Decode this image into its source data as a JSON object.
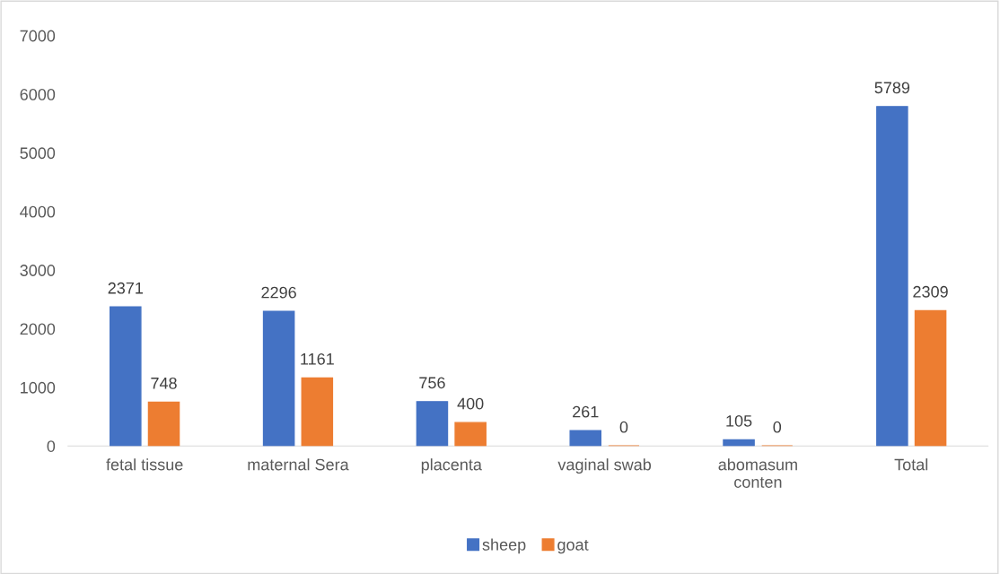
{
  "chart_data": {
    "type": "bar",
    "categories": [
      "fetal tissue",
      "maternal Sera",
      "placenta",
      "vaginal swab",
      "abomasum conten",
      "Total"
    ],
    "series": [
      {
        "name": "sheep",
        "color": "#4472c4",
        "values": [
          2371,
          2296,
          756,
          261,
          105,
          5789
        ]
      },
      {
        "name": "goat",
        "color": "#ed7d31",
        "values": [
          748,
          1161,
          400,
          0,
          0,
          2309
        ]
      }
    ],
    "ylim": [
      0,
      7000
    ],
    "yticks": [
      0,
      1000,
      2000,
      3000,
      4000,
      5000,
      6000,
      7000
    ],
    "data_labels": true,
    "grid": false,
    "legend": "bottom"
  }
}
